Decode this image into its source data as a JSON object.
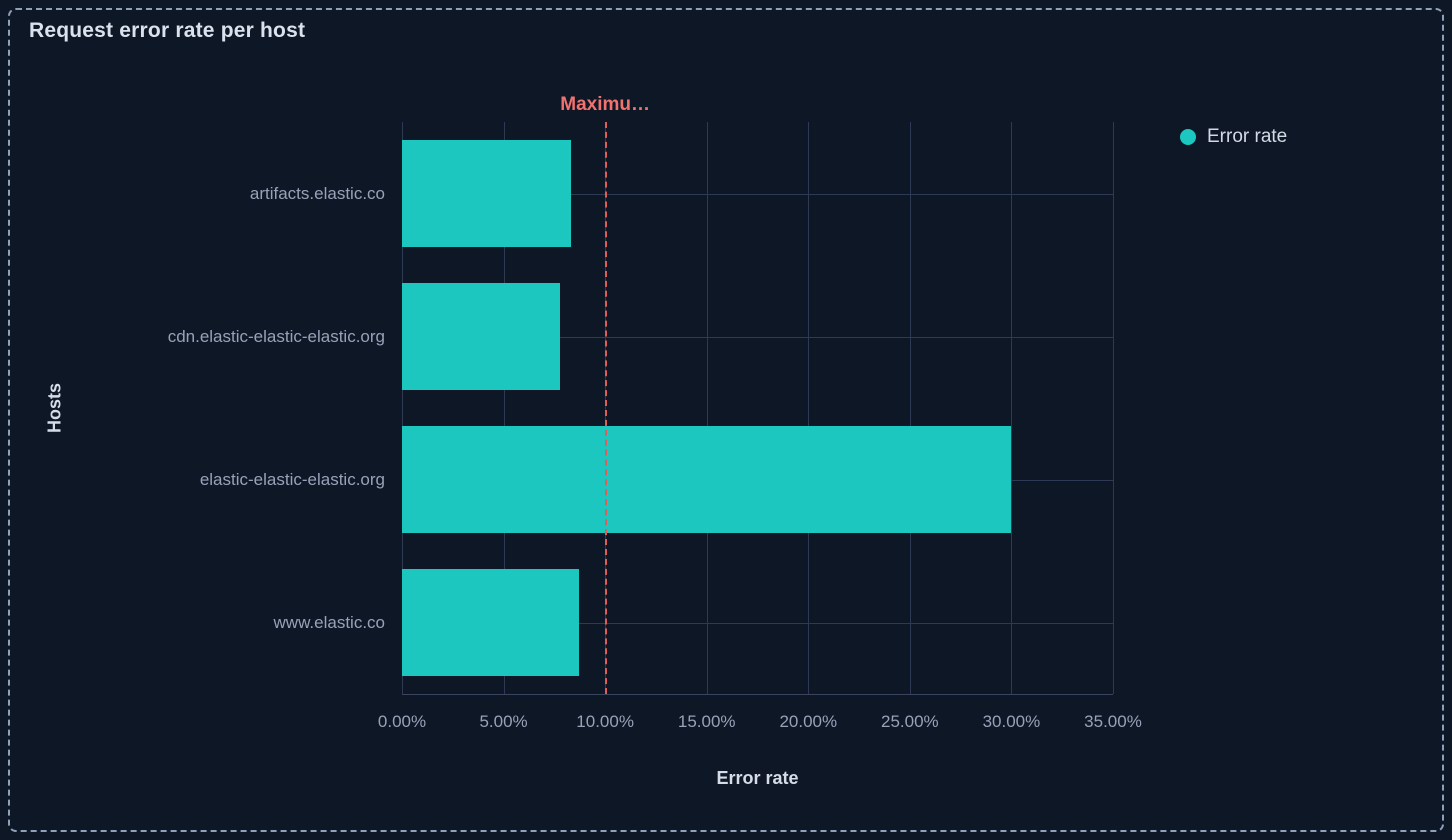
{
  "panel": {
    "title": "Request error rate per host"
  },
  "legend": {
    "position": "top-right",
    "items": [
      {
        "label": "Error rate",
        "color": "#1BC7BE",
        "marker": "circle-icon"
      }
    ]
  },
  "chart_data": {
    "type": "bar",
    "orientation": "horizontal",
    "title": "Request error rate per host",
    "categories": [
      "artifacts.elastic.co",
      "cdn.elastic-elastic-elastic.org",
      "elastic-elastic-elastic.org",
      "www.elastic.co"
    ],
    "series": [
      {
        "name": "Error rate",
        "values": [
          8.3,
          7.8,
          30.0,
          8.7
        ],
        "unit": "%"
      }
    ],
    "xlabel": "Error rate",
    "ylabel": "Hosts",
    "xlim": [
      0,
      35
    ],
    "x_ticks": [
      {
        "value": 0,
        "label": "0.00%"
      },
      {
        "value": 5,
        "label": "5.00%"
      },
      {
        "value": 10,
        "label": "10.00%"
      },
      {
        "value": 15,
        "label": "15.00%"
      },
      {
        "value": 20,
        "label": "20.00%"
      },
      {
        "value": 25,
        "label": "25.00%"
      },
      {
        "value": 30,
        "label": "30.00%"
      },
      {
        "value": 35,
        "label": "35.00%"
      }
    ],
    "grid": true,
    "legend_position": "right",
    "threshold": {
      "value": 10,
      "label": "Maximu…"
    }
  },
  "colors": {
    "background": "#0E1726",
    "panel_border": "#8FA0BB",
    "bar": "#1BC7BE",
    "gridline": "#2E3A54",
    "axis_line": "#39455E",
    "title_text": "#DBE2EE",
    "label_text": "#97A2B8",
    "axis_title_text": "#D5DCE8",
    "legend_text": "#D3DAE6",
    "threshold_line": "#E25D58",
    "threshold_text": "#F1726E"
  }
}
